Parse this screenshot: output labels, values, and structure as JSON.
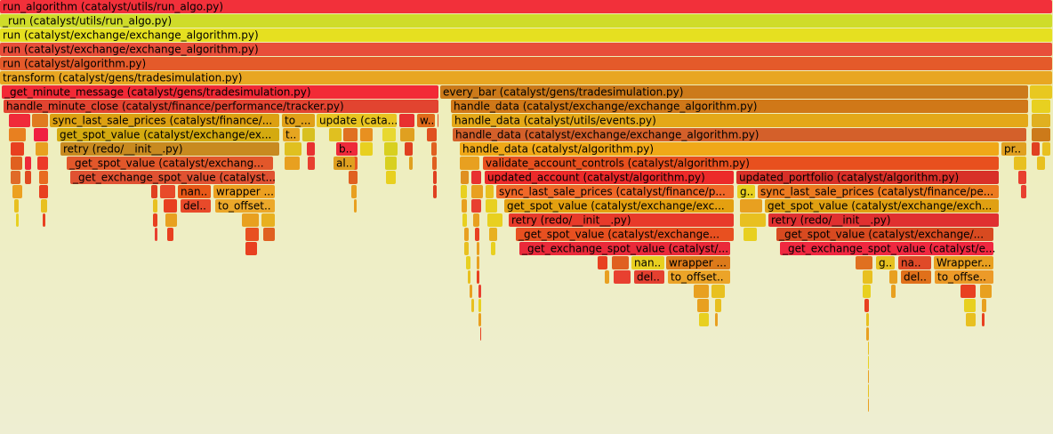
{
  "frames": [
    "run_algorithm (catalyst/utils/run_algo.py)",
    "_run (catalyst/utils/run_algo.py)",
    "run (catalyst/exchange/exchange_algorithm.py)",
    "run (catalyst/exchange/exchange_algorithm.py)",
    "run (catalyst/algorithm.py)",
    "transform (catalyst/gens/tradesimulation.py)",
    "_get_minute_message (catalyst/gens/tradesimulation.py)",
    "every_bar (catalyst/gens/tradesimulation.py)",
    "handle_minute_close (catalyst/finance/performance/tracker.py)",
    "handle_data (catalyst/exchange/exchange_algorithm.py)",
    "sync_last_sale_prices (catalyst/finance/...",
    "to_...",
    "update (cata...",
    "w..",
    "handle_data (catalyst/utils/events.py)",
    "get_spot_value (catalyst/exchange/ex...",
    "t..",
    "handle_data (catalyst/exchange/exchange_algorithm.py)",
    "retry (redo/__init__.py)",
    "b..",
    "handle_data (catalyst/algorithm.py)",
    "pr..",
    "_get_spot_value (catalyst/exchang...",
    "al..",
    "validate_account_controls (catalyst/algorithm.py)",
    "_get_exchange_spot_value (catalyst...",
    "updated_account (catalyst/algorithm.py)",
    "updated_portfolio (catalyst/algorithm.py)",
    "nan..",
    "wrapper ...",
    "sync_last_sale_prices (catalyst/finance/p...",
    "g..",
    "sync_last_sale_prices (catalyst/finance/pe...",
    "del..",
    "to_offset..",
    "get_spot_value (catalyst/exchange/exc...",
    "get_spot_value (catalyst/exchange/exch...",
    "retry (redo/__init__.py)",
    "retry (redo/__init__.py)",
    "_get_spot_value (catalyst/exchange...",
    "_get_spot_value (catalyst/exchange/...",
    "_get_exchange_spot_value (catalyst/...",
    "_get_exchange_spot_value (catalyst/e...",
    "nan..",
    "wrapper ...",
    "g..",
    "na..",
    "Wrapper...",
    "del..",
    "to_offset..",
    "del..",
    "to_offse.."
  ]
}
